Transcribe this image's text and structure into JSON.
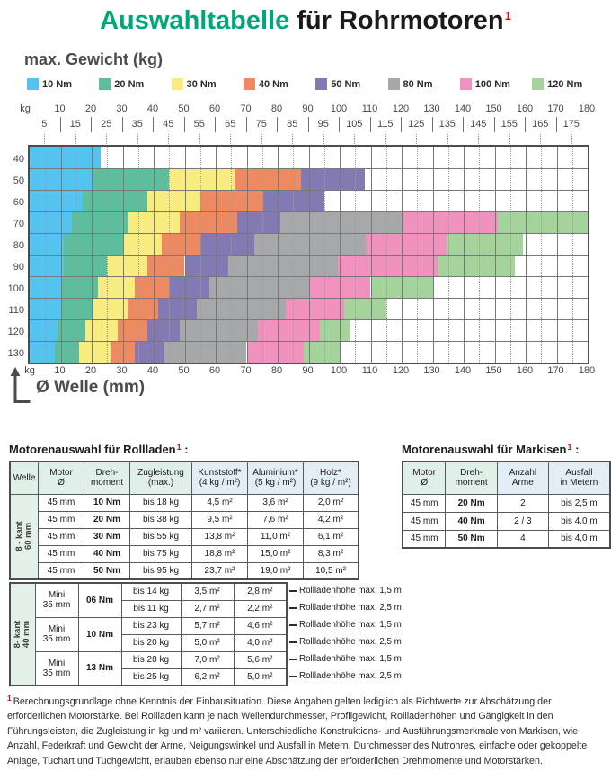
{
  "title": {
    "part1": "Auswahltabelle",
    "part2": " für Rohrmotoren",
    "sup": "1"
  },
  "y_axis_heading": "max. Gewicht (kg)",
  "x_axis_heading": "Ø Welle (mm)",
  "axis_unit_label": "kg",
  "legend": [
    {
      "label": "10 Nm",
      "color": "#55C3EF"
    },
    {
      "label": "20 Nm",
      "color": "#5EBD9D"
    },
    {
      "label": "30 Nm",
      "color": "#F8EC80"
    },
    {
      "label": "40 Nm",
      "color": "#EE8A62"
    },
    {
      "label": "50 Nm",
      "color": "#837AB4"
    },
    {
      "label": "80 Nm",
      "color": "#A7A8AA"
    },
    {
      "label": "100 Nm",
      "color": "#F092BD"
    },
    {
      "label": "120 Nm",
      "color": "#A4D39B"
    }
  ],
  "chart_data": {
    "type": "heatmap",
    "title": "max. Gewicht (kg)",
    "xlabel": "Ø Welle (mm)",
    "x_unit": "mm",
    "y_unit": "kg",
    "x_range": [
      0,
      180
    ],
    "x_major_ticks": [
      10,
      20,
      30,
      40,
      50,
      60,
      70,
      80,
      90,
      100,
      110,
      120,
      130,
      140,
      150,
      160,
      170,
      180
    ],
    "x_minor_ticks": [
      5,
      15,
      25,
      35,
      45,
      55,
      65,
      75,
      85,
      95,
      105,
      115,
      125,
      135,
      145,
      155,
      165,
      175
    ],
    "y_categories_kg": [
      40,
      50,
      60,
      70,
      80,
      90,
      100,
      110,
      120,
      130
    ],
    "grid": "on",
    "legend_position": "top",
    "series_unit": "Nm",
    "rows": [
      {
        "kg": 40,
        "segments": [
          [
            "10 Nm",
            0,
            23
          ]
        ]
      },
      {
        "kg": 50,
        "segments": [
          [
            "10 Nm",
            0,
            20.5
          ],
          [
            "20 Nm",
            20.5,
            45
          ],
          [
            "30 Nm",
            45,
            66
          ],
          [
            "40 Nm",
            66,
            87.5
          ],
          [
            "50 Nm",
            87.5,
            108
          ]
        ]
      },
      {
        "kg": 60,
        "segments": [
          [
            "10 Nm",
            0,
            17
          ],
          [
            "20 Nm",
            17,
            38
          ],
          [
            "30 Nm",
            38,
            55
          ],
          [
            "40 Nm",
            55,
            75.5
          ],
          [
            "50 Nm",
            75.5,
            95
          ]
        ]
      },
      {
        "kg": 70,
        "segments": [
          [
            "10 Nm",
            0,
            13.5
          ],
          [
            "20 Nm",
            13.5,
            32
          ],
          [
            "30 Nm",
            32,
            48.5
          ],
          [
            "40 Nm",
            48.5,
            67
          ],
          [
            "50 Nm",
            67,
            81
          ],
          [
            "80 Nm",
            81,
            120.5
          ],
          [
            "100 Nm",
            120.5,
            151
          ],
          [
            "120 Nm",
            151,
            180
          ]
        ]
      },
      {
        "kg": 80,
        "segments": [
          [
            "10 Nm",
            0,
            11
          ],
          [
            "20 Nm",
            11,
            30.5
          ],
          [
            "30 Nm",
            30.5,
            42.5
          ],
          [
            "40 Nm",
            42.5,
            55
          ],
          [
            "50 Nm",
            55,
            72.5
          ],
          [
            "80 Nm",
            72.5,
            108.5
          ],
          [
            "100 Nm",
            108.5,
            134.5
          ],
          [
            "120 Nm",
            134.5,
            159
          ]
        ]
      },
      {
        "kg": 90,
        "segments": [
          [
            "10 Nm",
            0,
            11
          ],
          [
            "20 Nm",
            11,
            25
          ],
          [
            "30 Nm",
            25,
            38
          ],
          [
            "40 Nm",
            38,
            50
          ],
          [
            "50 Nm",
            50,
            64
          ],
          [
            "80 Nm",
            64,
            99.5
          ],
          [
            "100 Nm",
            99.5,
            132
          ],
          [
            "120 Nm",
            132,
            156.5
          ]
        ]
      },
      {
        "kg": 100,
        "segments": [
          [
            "10 Nm",
            0,
            10.5
          ],
          [
            "20 Nm",
            10.5,
            22
          ],
          [
            "30 Nm",
            22,
            34
          ],
          [
            "40 Nm",
            34,
            45
          ],
          [
            "50 Nm",
            45,
            58
          ],
          [
            "80 Nm",
            58,
            90.5
          ],
          [
            "100 Nm",
            90.5,
            110
          ],
          [
            "120 Nm",
            110,
            130.5
          ]
        ]
      },
      {
        "kg": 110,
        "segments": [
          [
            "10 Nm",
            0,
            10
          ],
          [
            "20 Nm",
            10,
            20.5
          ],
          [
            "30 Nm",
            20.5,
            31.5
          ],
          [
            "40 Nm",
            31.5,
            41.5
          ],
          [
            "50 Nm",
            41.5,
            54
          ],
          [
            "80 Nm",
            54,
            82.5
          ],
          [
            "100 Nm",
            82.5,
            101.5
          ],
          [
            "120 Nm",
            101.5,
            115
          ]
        ]
      },
      {
        "kg": 120,
        "segments": [
          [
            "10 Nm",
            0,
            9
          ],
          [
            "20 Nm",
            9,
            18
          ],
          [
            "30 Nm",
            18,
            28.5
          ],
          [
            "40 Nm",
            28.5,
            38
          ],
          [
            "50 Nm",
            38,
            48.5
          ],
          [
            "80 Nm",
            48.5,
            73.5
          ],
          [
            "100 Nm",
            73.5,
            93.5
          ],
          [
            "120 Nm",
            93.5,
            103.5
          ]
        ]
      },
      {
        "kg": 130,
        "segments": [
          [
            "10 Nm",
            0,
            8
          ],
          [
            "20 Nm",
            8,
            16
          ],
          [
            "30 Nm",
            16,
            26
          ],
          [
            "40 Nm",
            26,
            34
          ],
          [
            "50 Nm",
            34,
            43.5
          ],
          [
            "80 Nm",
            43.5,
            70
          ],
          [
            "100 Nm",
            70,
            88.5
          ],
          [
            "120 Nm",
            88.5,
            100
          ]
        ]
      }
    ]
  },
  "tables": {
    "rollladen": {
      "title": "Motorenauswahl für Rollladen",
      "sup": "1",
      "colon": " :",
      "headers": [
        [
          "Welle"
        ],
        [
          "Motor",
          "Ø"
        ],
        [
          "Dreh-",
          "moment"
        ],
        [
          "Zugleistung",
          "(max.)"
        ],
        [
          "Kunststoff*",
          "(4 kg / m²)"
        ],
        [
          "Aluminium*",
          "(5 kg / m²)"
        ],
        [
          "Holz*",
          "(9 kg / m²)"
        ]
      ],
      "group1": {
        "welle_label": [
          "8 - kant",
          "60 mm"
        ],
        "rows": [
          [
            "45 mm",
            "10 Nm",
            "bis 18 kg",
            "4,5 m²",
            "3,6 m²",
            "2,0 m²"
          ],
          [
            "45 mm",
            "20 Nm",
            "bis 38 kg",
            "9,5 m²",
            "7,6 m²",
            "4,2 m²"
          ],
          [
            "45 mm",
            "30 Nm",
            "bis 55 kg",
            "13,8 m²",
            "11,0 m²",
            "6,1 m²"
          ],
          [
            "45 mm",
            "40 Nm",
            "bis 75 kg",
            "18,8 m²",
            "15,0 m²",
            "8,3 m²"
          ],
          [
            "45 mm",
            "50 Nm",
            "bis 95 kg",
            "23,7 m²",
            "19,0 m²",
            "10,5 m²"
          ]
        ]
      },
      "group2": {
        "welle_label": [
          "8- kant",
          "40 mm"
        ],
        "pairs": [
          {
            "motor": [
              "Mini",
              "35 mm"
            ],
            "torque": "06 Nm",
            "rows": [
              [
                "bis 14 kg",
                "3,5 m²",
                "2,8 m²",
                "Rollladenhöhe max. 1,5 m"
              ],
              [
                "bis 11 kg",
                "2,7 m²",
                "2,2 m²",
                "Rollladenhöhe max. 2,5 m"
              ]
            ]
          },
          {
            "motor": [
              "Mini",
              "35 mm"
            ],
            "torque": "10 Nm",
            "rows": [
              [
                "bis 23 kg",
                "5,7 m²",
                "4,6 m²",
                "Rollladenhöhe max. 1,5 m"
              ],
              [
                "bis 20 kg",
                "5,0 m²",
                "4,0 m²",
                "Rollladenhöhe max. 2,5 m"
              ]
            ]
          },
          {
            "motor": [
              "Mini",
              "35 mm"
            ],
            "torque": "13 Nm",
            "rows": [
              [
                "bis 28 kg",
                "7,0 m²",
                "5,6 m²",
                "Rollladenhöhe max. 1,5 m"
              ],
              [
                "bis 25 kg",
                "6,2 m²",
                "5,0 m²",
                "Rollladenhöhe max. 2,5 m"
              ]
            ]
          }
        ]
      }
    },
    "markisen": {
      "title": "Motorenauswahl für Markisen",
      "sup": "1",
      "colon": " :",
      "headers": [
        [
          "Motor",
          "Ø"
        ],
        [
          "Dreh-",
          "moment"
        ],
        [
          "Anzahl",
          "Arme"
        ],
        [
          "Ausfall",
          "in Metern"
        ]
      ],
      "rows": [
        [
          "45 mm",
          "20 Nm",
          "2",
          "bis 2,5 m"
        ],
        [
          "45 mm",
          "40 Nm",
          "2 / 3",
          "bis 4,0 m"
        ],
        [
          "45 mm",
          "50 Nm",
          "4",
          "bis 4,0 m"
        ]
      ]
    }
  },
  "footnote": {
    "mark": "1",
    "text": "Berechnungsgrundlage ohne Kenntnis der Einbausituation. Diese Angaben gelten lediglich als Richtwerte zur Abschätzung der erforderlichen Motorstärke. Bei Rollladen kann je nach Wellendurchmesser, Profilgewicht, Rollladenhöhen und Gängigkeit in den Führungsleisten, die Zugleistung in kg und m² variieren. Unterschiedliche Konstruktions- und Ausführungsmerkmale von Markisen, wie Anzahl, Federkraft und Gewicht der Arme, Neigungswinkel und Ausfall in Metern, Durchmesser des Nutrohres, einfache oder gekoppelte Anlage, Tuchart und Tuchgewicht, erlauben ebenso nur eine Abschätzung der erforderlichen Drehmomente und Motorstärken."
  }
}
